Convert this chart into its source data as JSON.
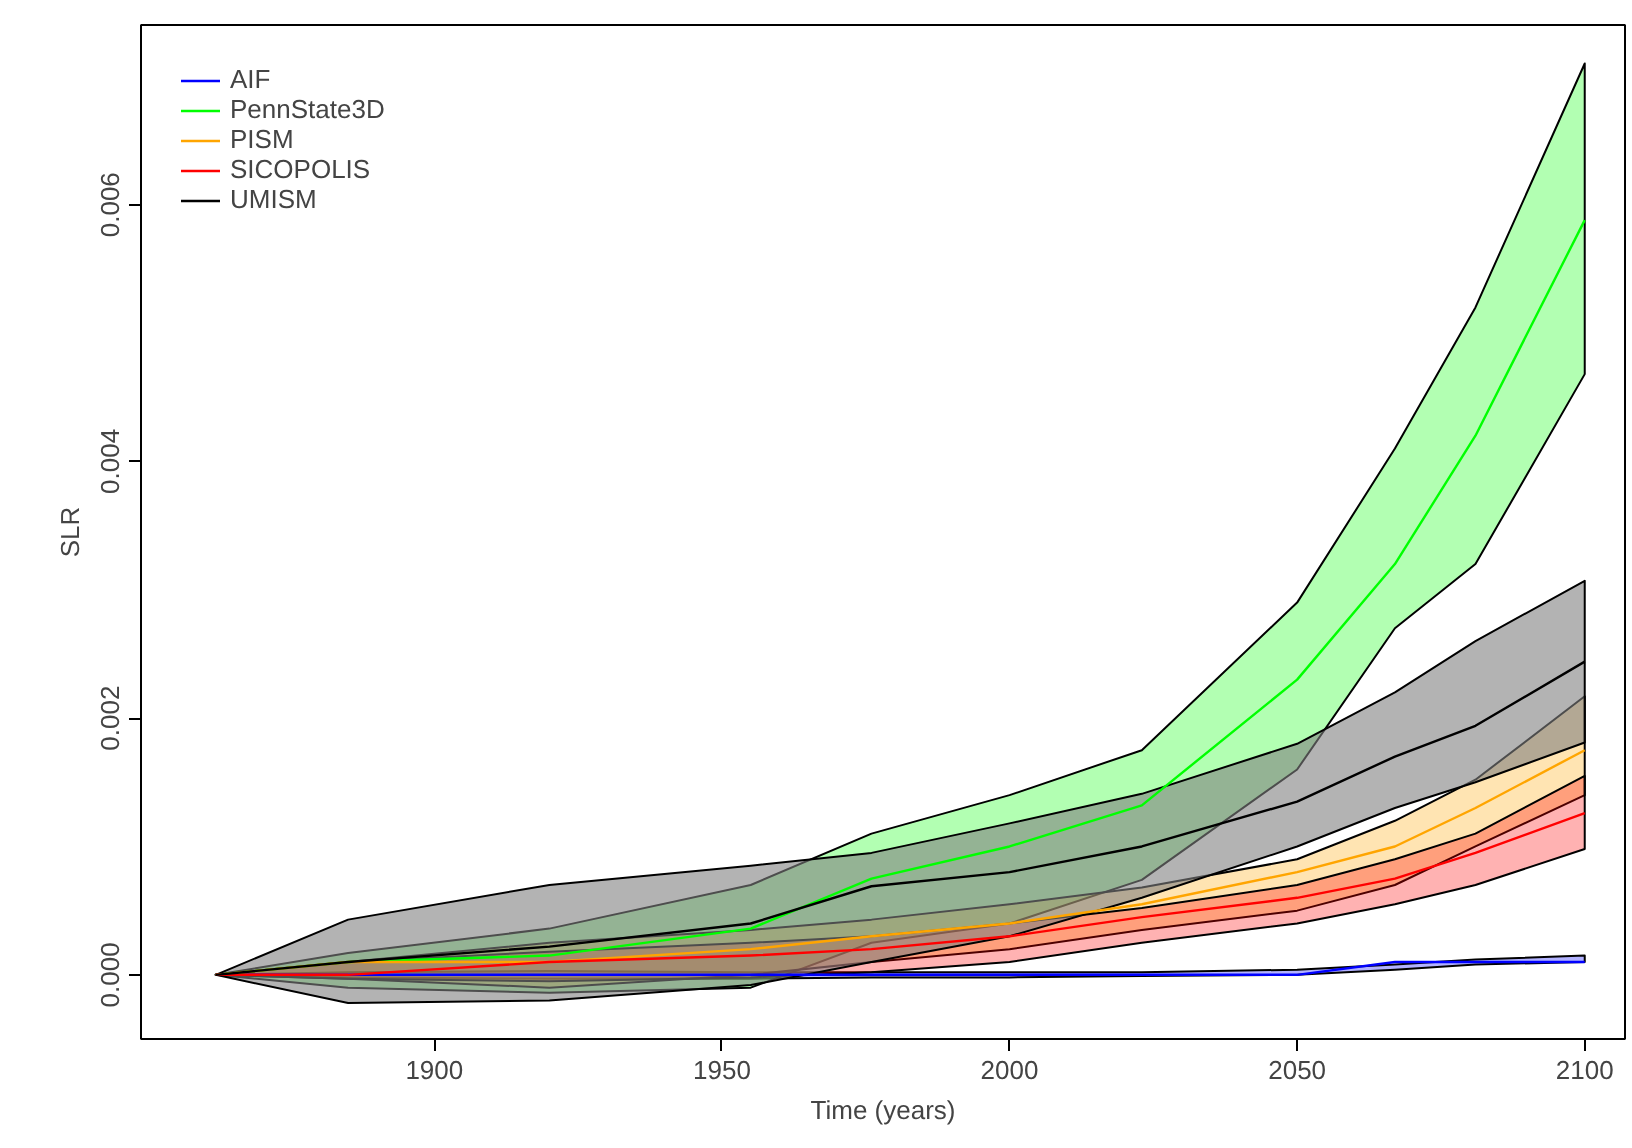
{
  "chart_data": {
    "type": "line",
    "xlabel": "Time (years)",
    "ylabel": "SLR",
    "x": [
      1862,
      1885,
      1920,
      1955,
      1976,
      2000,
      2023,
      2050,
      2067,
      2081,
      2100
    ],
    "xlim": [
      1849,
      2107
    ],
    "ylim": [
      -0.0005,
      0.0074
    ],
    "xticks": [
      1900,
      1950,
      2000,
      2050,
      2100
    ],
    "yticks": [
      {
        "value": 0,
        "label": "0.000"
      },
      {
        "value": 0.002,
        "label": "0.002"
      },
      {
        "value": 0.004,
        "label": "0.004"
      },
      {
        "value": 0.006,
        "label": "0.006"
      }
    ],
    "grid": false,
    "legend": "top left",
    "line_style": "solid",
    "marker": "none",
    "series": [
      {
        "name": "AIF",
        "color": "#0000ff",
        "values": [
          0,
          0,
          0,
          0,
          0,
          0,
          0,
          0,
          0.0001,
          0.0001,
          0.0001
        ],
        "lower": [
          0,
          -2e-05,
          -3e-05,
          -3e-05,
          -2e-05,
          -2e-05,
          -1e-05,
          0,
          4e-05,
          8e-05,
          0.0001
        ],
        "upper": [
          0,
          2e-05,
          3e-05,
          2e-05,
          2e-05,
          2e-05,
          2e-05,
          4e-05,
          8e-05,
          0.00012,
          0.00015
        ]
      },
      {
        "name": "PennState3D",
        "color": "#00ff00",
        "values": [
          0,
          0.0001,
          0.00015,
          0.00036,
          0.00075,
          0.001,
          0.00132,
          0.0023,
          0.0032,
          0.0042,
          0.00588
        ],
        "lower": [
          0,
          -0.0001,
          -0.00014,
          -0.0001,
          0.00025,
          0.0004,
          0.00074,
          0.0016,
          0.0027,
          0.0032,
          0.00468
        ],
        "upper": [
          0,
          0.00017,
          0.00036,
          0.0007,
          0.0011,
          0.0014,
          0.00175,
          0.0029,
          0.0041,
          0.0052,
          0.0071
        ]
      },
      {
        "name": "PISM",
        "color": "#ffa500",
        "values": [
          0,
          0.0001,
          0.0001,
          0.0002,
          0.0003,
          0.0004,
          0.00055,
          0.0008,
          0.001,
          0.0013,
          0.00175
        ],
        "lower": [
          0,
          -3e-05,
          -0.0001,
          0,
          0.0001,
          0.0002,
          0.00035,
          0.0005,
          0.0007,
          0.001,
          0.0014
        ],
        "upper": [
          0,
          0.0001,
          0.00025,
          0.00035,
          0.00043,
          0.00055,
          0.00068,
          0.0009,
          0.0012,
          0.00152,
          0.00217
        ]
      },
      {
        "name": "SICOPOLIS",
        "color": "#ff0000",
        "values": [
          0,
          0,
          0.0001,
          0.00015,
          0.0002,
          0.0003,
          0.00045,
          0.0006,
          0.00075,
          0.00095,
          0.00126
        ],
        "lower": [
          0,
          -3e-05,
          -5e-05,
          -2e-05,
          2e-05,
          0.0001,
          0.00025,
          0.0004,
          0.00055,
          0.0007,
          0.00098
        ],
        "upper": [
          0,
          0.0001,
          0.00018,
          0.00025,
          0.0003,
          0.0004,
          0.00052,
          0.0007,
          0.0009,
          0.0011,
          0.00155
        ]
      },
      {
        "name": "UMISM",
        "color": "#000000",
        "values": [
          0,
          0.0001,
          0.00022,
          0.0004,
          0.00069,
          0.0008,
          0.001,
          0.00135,
          0.0017,
          0.00194,
          0.00244
        ],
        "lower": [
          0,
          -0.00022,
          -0.0002,
          -8e-05,
          0.0001,
          0.0003,
          0.0006,
          0.001,
          0.0013,
          0.0015,
          0.00181
        ],
        "upper": [
          0,
          0.00043,
          0.0007,
          0.00085,
          0.00095,
          0.00118,
          0.00141,
          0.0018,
          0.0022,
          0.0026,
          0.00307
        ]
      }
    ]
  }
}
